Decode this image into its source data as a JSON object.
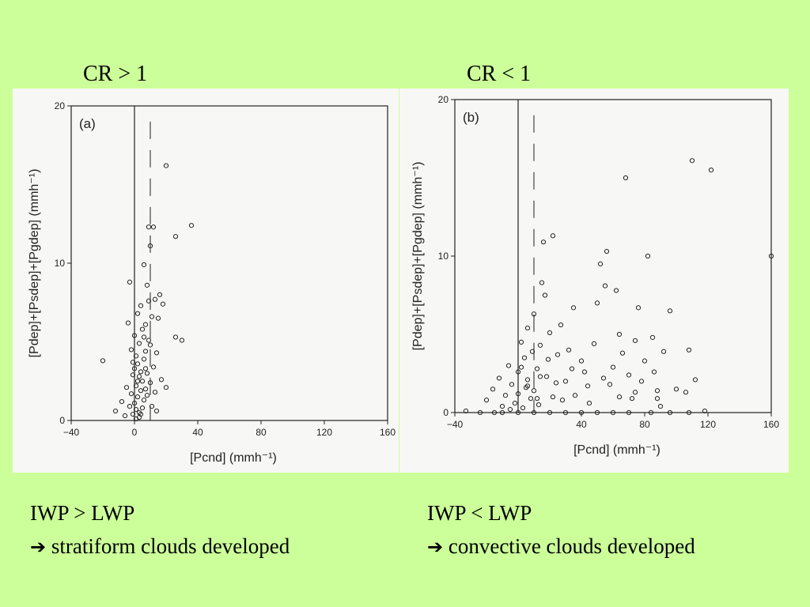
{
  "headings": {
    "left": "CR > 1",
    "right": "CR < 1"
  },
  "captions": {
    "left": {
      "line1": "IWP > LWP",
      "arrow": "➔",
      "line2": "stratiform clouds developed"
    },
    "right": {
      "line1": "IWP < LWP",
      "arrow": "➔",
      "line2": "convective clouds developed"
    }
  },
  "chart_data": [
    {
      "type": "scatter",
      "panel_label": "(a)",
      "xlabel": "[Pcnd]  (mmh⁻¹)",
      "ylabel": "[Pdep]+[Psdep]+[Pgdep]  (mmh⁻¹)",
      "xlim": [
        -40,
        160
      ],
      "ylim": [
        0,
        20
      ],
      "xticks": [
        -40,
        0,
        40,
        80,
        120,
        160
      ],
      "yticks": [
        0,
        10,
        20
      ],
      "points": [
        [
          -20,
          3.8
        ],
        [
          -12,
          0.6
        ],
        [
          -8,
          1.2
        ],
        [
          -6,
          0.3
        ],
        [
          -5,
          2.1
        ],
        [
          -4,
          6.2
        ],
        [
          -3,
          8.8
        ],
        [
          -3,
          0.9
        ],
        [
          -2,
          4.5
        ],
        [
          -2,
          1.7
        ],
        [
          -1,
          2.9
        ],
        [
          -1,
          0.4
        ],
        [
          0,
          3.3
        ],
        [
          0,
          1.1
        ],
        [
          0,
          5.4
        ],
        [
          1,
          2.2
        ],
        [
          1,
          0.7
        ],
        [
          1,
          4.1
        ],
        [
          2,
          3.6
        ],
        [
          2,
          1.5
        ],
        [
          2,
          6.8
        ],
        [
          3,
          2.8
        ],
        [
          3,
          0.5
        ],
        [
          3,
          4.9
        ],
        [
          4,
          3.1
        ],
        [
          4,
          1.9
        ],
        [
          4,
          7.3
        ],
        [
          5,
          2.5
        ],
        [
          5,
          5.8
        ],
        [
          5,
          0.8
        ],
        [
          6,
          3.9
        ],
        [
          6,
          1.3
        ],
        [
          6,
          9.9
        ],
        [
          7,
          4.4
        ],
        [
          7,
          2.0
        ],
        [
          7,
          6.1
        ],
        [
          8,
          8.6
        ],
        [
          8,
          3.0
        ],
        [
          8,
          1.6
        ],
        [
          9,
          5.1
        ],
        [
          9,
          7.6
        ],
        [
          9,
          12.3
        ],
        [
          10,
          4.8
        ],
        [
          10,
          2.4
        ],
        [
          10,
          11.1
        ],
        [
          11,
          6.6
        ],
        [
          11,
          0.9
        ],
        [
          12,
          3.4
        ],
        [
          12,
          12.3
        ],
        [
          13,
          7.7
        ],
        [
          13,
          1.8
        ],
        [
          14,
          4.3
        ],
        [
          14,
          0.6
        ],
        [
          15,
          6.5
        ],
        [
          16,
          8.0
        ],
        [
          17,
          2.6
        ],
        [
          18,
          7.4
        ],
        [
          20,
          16.2
        ],
        [
          20,
          2.1
        ],
        [
          26,
          11.7
        ],
        [
          26,
          5.3
        ],
        [
          30,
          5.1
        ],
        [
          36,
          12.4
        ],
        [
          3,
          0.2
        ],
        [
          1,
          0.1
        ],
        [
          2,
          2.5
        ],
        [
          4,
          0.4
        ],
        [
          -1,
          3.7
        ],
        [
          6,
          5.3
        ],
        [
          7,
          3.3
        ]
      ]
    },
    {
      "type": "scatter",
      "panel_label": "(b)",
      "xlabel": "[Pcnd]  (mmh⁻¹)",
      "ylabel": "[Pdep]+[Psdep]+[Pgdep]  (mmh⁻¹)",
      "xlim": [
        -40,
        160
      ],
      "ylim": [
        0,
        20
      ],
      "xticks": [
        -40,
        40,
        80,
        120,
        160
      ],
      "yticks": [
        0,
        10,
        20
      ],
      "points": [
        [
          -33,
          0.1
        ],
        [
          -20,
          0.8
        ],
        [
          -16,
          1.5
        ],
        [
          -12,
          2.2
        ],
        [
          -10,
          0.4
        ],
        [
          -8,
          1.1
        ],
        [
          -6,
          3.0
        ],
        [
          -5,
          0.2
        ],
        [
          -4,
          1.8
        ],
        [
          -2,
          0.6
        ],
        [
          0,
          2.6
        ],
        [
          0,
          1.2
        ],
        [
          2,
          4.5
        ],
        [
          3,
          0.3
        ],
        [
          4,
          3.5
        ],
        [
          5,
          1.6
        ],
        [
          6,
          5.4
        ],
        [
          6,
          2.1
        ],
        [
          8,
          0.9
        ],
        [
          9,
          3.9
        ],
        [
          10,
          1.4
        ],
        [
          10,
          6.3
        ],
        [
          12,
          2.8
        ],
        [
          13,
          0.5
        ],
        [
          14,
          4.3
        ],
        [
          15,
          8.3
        ],
        [
          16,
          10.9
        ],
        [
          17,
          7.5
        ],
        [
          18,
          2.3
        ],
        [
          19,
          3.4
        ],
        [
          20,
          5.1
        ],
        [
          22,
          11.3
        ],
        [
          22,
          1.0
        ],
        [
          25,
          3.7
        ],
        [
          27,
          5.6
        ],
        [
          30,
          2.0
        ],
        [
          32,
          4.0
        ],
        [
          35,
          6.7
        ],
        [
          36,
          1.1
        ],
        [
          40,
          3.3
        ],
        [
          42,
          2.6
        ],
        [
          45,
          0.6
        ],
        [
          48,
          4.4
        ],
        [
          50,
          7.0
        ],
        [
          52,
          9.5
        ],
        [
          55,
          8.1
        ],
        [
          56,
          10.3
        ],
        [
          58,
          1.8
        ],
        [
          60,
          2.9
        ],
        [
          62,
          7.8
        ],
        [
          64,
          5.0
        ],
        [
          66,
          3.8
        ],
        [
          68,
          15.0
        ],
        [
          70,
          2.4
        ],
        [
          72,
          0.9
        ],
        [
          74,
          4.6
        ],
        [
          76,
          6.7
        ],
        [
          78,
          2.0
        ],
        [
          80,
          3.3
        ],
        [
          82,
          10.0
        ],
        [
          85,
          4.8
        ],
        [
          86,
          2.6
        ],
        [
          88,
          1.4
        ],
        [
          90,
          0.4
        ],
        [
          92,
          3.9
        ],
        [
          96,
          6.5
        ],
        [
          100,
          1.5
        ],
        [
          106,
          1.3
        ],
        [
          108,
          4.0
        ],
        [
          110,
          16.1
        ],
        [
          112,
          2.1
        ],
        [
          122,
          15.5
        ],
        [
          118,
          0.1
        ],
        [
          160,
          10.0
        ],
        [
          -24,
          0.0
        ],
        [
          -15,
          0.0
        ],
        [
          -10,
          0.0
        ],
        [
          0,
          0.0
        ],
        [
          10,
          0.0
        ],
        [
          20,
          0.0
        ],
        [
          30,
          0.0
        ],
        [
          40,
          0.0
        ],
        [
          50,
          0.0
        ],
        [
          60,
          0.0
        ],
        [
          70,
          0.0
        ],
        [
          84,
          0.0
        ],
        [
          96,
          0.0
        ],
        [
          108,
          0.0
        ],
        [
          2,
          2.9
        ],
        [
          6,
          1.7
        ],
        [
          12,
          0.9
        ],
        [
          14,
          2.3
        ],
        [
          24,
          1.9
        ],
        [
          28,
          0.8
        ],
        [
          34,
          2.8
        ],
        [
          44,
          1.7
        ],
        [
          54,
          2.2
        ],
        [
          64,
          1.0
        ],
        [
          74,
          1.3
        ],
        [
          88,
          0.9
        ]
      ]
    }
  ]
}
